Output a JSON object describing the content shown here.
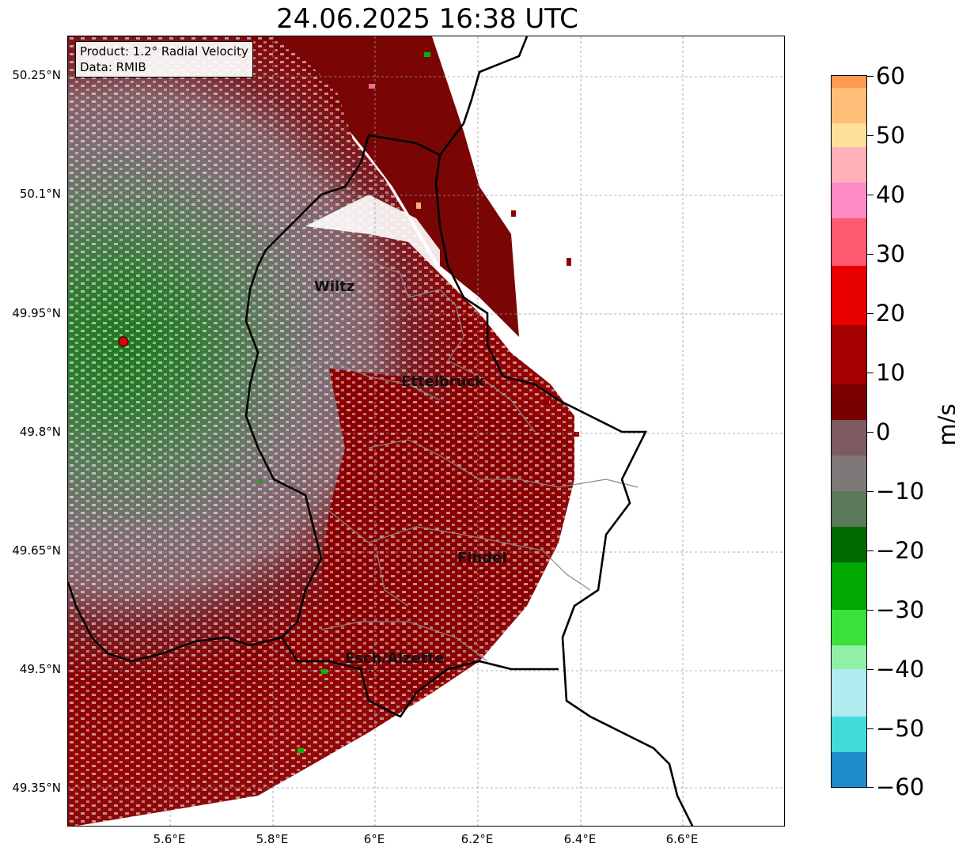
{
  "title": "24.06.2025 16:38 UTC",
  "info": {
    "product": "Product: 1.2° Radial Velocity",
    "data": "Data: RMIB"
  },
  "lat_labels": [
    "50.25°N",
    "50.1°N",
    "49.95°N",
    "49.8°N",
    "49.65°N",
    "49.5°N",
    "49.35°N"
  ],
  "lon_labels": [
    "5.6°E",
    "5.8°E",
    "6°E",
    "6.2°E",
    "6.4°E",
    "6.6°E"
  ],
  "colorbar": {
    "unit": "m/s",
    "ticks": [
      "60",
      "50",
      "40",
      "30",
      "20",
      "10",
      "0",
      "−10",
      "−20",
      "−30",
      "−40",
      "−50",
      "−60"
    ],
    "range": [
      -60,
      60
    ]
  },
  "cities": [
    {
      "name": "Wiltz"
    },
    {
      "name": "Ettelbruck"
    },
    {
      "name": "Findel"
    },
    {
      "name": "Esch/Alzette"
    }
  ],
  "colors": {
    "radar_site": "#e60000",
    "border": "#000000",
    "admin_border": "#888888"
  }
}
